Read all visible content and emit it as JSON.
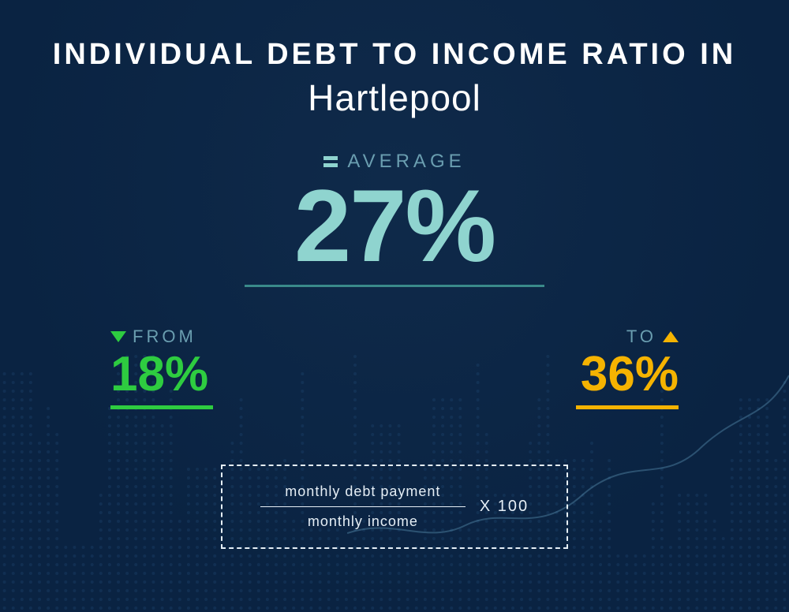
{
  "background": {
    "gradient_from": "#0f2a4a",
    "gradient_to": "#0a2342",
    "dot_color": "#2a5a8a",
    "line_color": "#6aa7c8"
  },
  "title": {
    "line1": "INDIVIDUAL  DEBT  TO  INCOME RATIO  IN",
    "line2": "Hartlepool",
    "color": "#ffffff",
    "line1_fontsize": 38,
    "line2_fontsize": 46
  },
  "average": {
    "label": "AVERAGE",
    "value": "27%",
    "color": "#8fd4cf",
    "label_color": "#6a9eb0",
    "underline_color": "#3a8a8a",
    "value_fontsize": 130,
    "label_fontsize": 24
  },
  "from": {
    "label": "FROM",
    "value": "18%",
    "color": "#2ecc40",
    "label_color": "#6a9eb0",
    "value_fontsize": 62
  },
  "to": {
    "label": "TO",
    "value": "36%",
    "color": "#f5b301",
    "label_color": "#6a9eb0",
    "value_fontsize": 62
  },
  "formula": {
    "numerator": "monthly debt payment",
    "denominator": "monthly income",
    "multiplier": "X 100",
    "border_color": "#e5eef5",
    "text_color": "#e5eef5"
  }
}
